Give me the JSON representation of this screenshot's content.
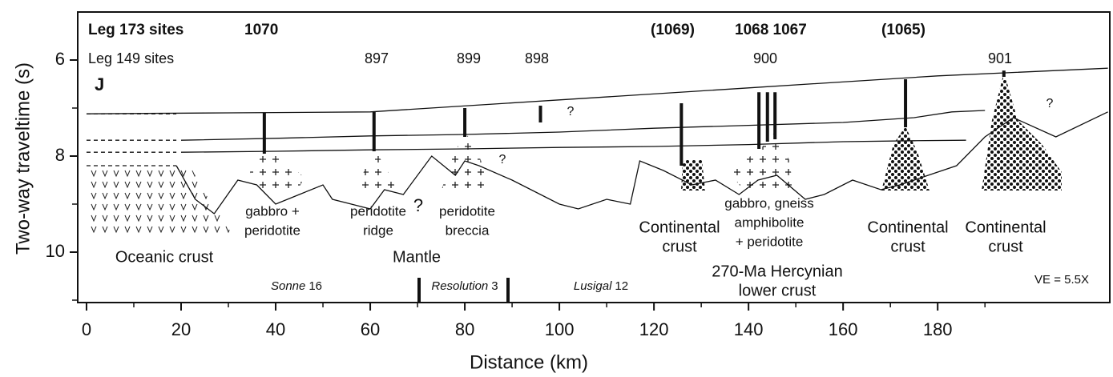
{
  "chart_data": {
    "type": "section",
    "xlabel": "Distance (km)",
    "ylabel": "Two-way traveltime (s)",
    "xlim": [
      -1.86,
      216.4
    ],
    "ylim": [
      11.05,
      5
    ],
    "xticks": [
      0,
      20,
      40,
      60,
      80,
      100,
      120,
      140,
      160,
      180
    ],
    "xminor": [
      10,
      30,
      50,
      70,
      90,
      110,
      130,
      150,
      170,
      190
    ],
    "yticks": [
      6,
      8,
      10
    ],
    "yminor": [
      7,
      9,
      11
    ],
    "series": [
      {
        "color": "#111",
        "dash": false,
        "x": [
          0,
          30,
          60,
          100,
          140,
          180,
          216
        ],
        "values": [
          7.12,
          7.1,
          7.08,
          6.83,
          6.58,
          6.33,
          6.17
        ]
      },
      {
        "color": "#111",
        "dash": false,
        "x": [
          20,
          40,
          60,
          80,
          100,
          120,
          140,
          160,
          175,
          183,
          190
        ],
        "values": [
          7.67,
          7.63,
          7.58,
          7.55,
          7.5,
          7.42,
          7.36,
          7.3,
          7.2,
          7.08,
          7.05
        ]
      },
      {
        "color": "#111",
        "dash": false,
        "x": [
          20,
          40,
          60,
          80,
          100,
          120,
          140,
          160,
          175,
          186
        ],
        "values": [
          7.92,
          7.9,
          7.87,
          7.85,
          7.82,
          7.8,
          7.76,
          7.7,
          7.68,
          7.67
        ]
      },
      {
        "color": "#111",
        "dash": false,
        "x": [
          19,
          23,
          27,
          32,
          36,
          40,
          45,
          50,
          52,
          60,
          63,
          67,
          73,
          78,
          80,
          83,
          90,
          100,
          104,
          110,
          115,
          117,
          122,
          128,
          133,
          138,
          142,
          146,
          152,
          156,
          162,
          168,
          172,
          184,
          190,
          196,
          205,
          216
        ],
        "values": [
          8.2,
          8.9,
          9.2,
          8.5,
          8.6,
          9.0,
          8.8,
          8.6,
          8.9,
          9.1,
          8.7,
          8.8,
          8.0,
          8.4,
          8.1,
          8.2,
          8.5,
          9.0,
          9.1,
          8.9,
          9.0,
          8.1,
          8.3,
          8.6,
          8.5,
          8.8,
          8.5,
          8.4,
          8.9,
          8.8,
          8.5,
          8.7,
          8.6,
          8.2,
          7.6,
          7.2,
          7.6,
          7.08
        ]
      },
      {
        "color": "#111",
        "dash": true,
        "x": [
          0,
          19
        ],
        "values": [
          7.12,
          7.12
        ]
      },
      {
        "color": "#111",
        "dash": true,
        "x": [
          0,
          19
        ],
        "values": [
          7.67,
          7.67
        ]
      },
      {
        "color": "#111",
        "dash": true,
        "x": [
          0,
          19
        ],
        "values": [
          7.92,
          7.92
        ]
      },
      {
        "color": "#111",
        "dash": true,
        "x": [
          0,
          19
        ],
        "values": [
          8.2,
          8.2
        ]
      }
    ],
    "holes": [
      {
        "x": [
          37.6,
          37.6
        ],
        "values": [
          7.1,
          7.95
        ]
      },
      {
        "x": [
          60.8,
          60.8
        ],
        "values": [
          7.08,
          7.9
        ]
      },
      {
        "x": [
          80,
          80
        ],
        "values": [
          7.0,
          7.6
        ]
      },
      {
        "x": [
          96,
          96
        ],
        "values": [
          6.95,
          7.3
        ]
      },
      {
        "x": [
          125.8,
          125.8
        ],
        "values": [
          6.9,
          8.2
        ]
      },
      {
        "x": [
          142.2,
          142.2
        ],
        "values": [
          6.67,
          7.85
        ]
      },
      {
        "x": [
          144,
          144
        ],
        "values": [
          6.67,
          7.7
        ]
      },
      {
        "x": [
          145.6,
          145.6
        ],
        "values": [
          6.67,
          7.65
        ]
      },
      {
        "x": [
          173.2,
          173.2
        ],
        "values": [
          6.4,
          7.4
        ]
      },
      {
        "x": [
          194,
          194
        ],
        "values": [
          6.22,
          6.35
        ]
      }
    ],
    "leg173": {
      "label": "Leg 173 sites",
      "sites": [
        "1070",
        "(1069)",
        "1068 1067",
        "(1065)"
      ]
    },
    "leg149": {
      "label": "Leg 149 sites",
      "sites": [
        "897",
        "899",
        "898",
        "900",
        "901"
      ]
    },
    "panel": "J",
    "questions": [
      "?",
      "?",
      "?",
      "?"
    ],
    "annotations": [
      [
        "gabbro +",
        "peridotite"
      ],
      [
        "peridotite",
        "ridge"
      ],
      [
        "peridotite",
        "breccia"
      ],
      [
        "gabbro, gneiss",
        "amphibolite",
        "+ peridotite"
      ]
    ],
    "big_labels": [
      [
        "Oceanic crust"
      ],
      [
        "Mantle"
      ],
      [
        "Continental",
        "crust"
      ],
      [
        "270-Ma Hercynian",
        "lower crust"
      ],
      [
        "Continental",
        "crust"
      ],
      [
        "Continental",
        "crust"
      ]
    ],
    "cruises": [
      {
        "ship": "Sonne",
        "number": "16"
      },
      {
        "ship": "Resolution",
        "number": "3"
      },
      {
        "ship": "Lusigal",
        "number": "12"
      }
    ],
    "ve": "VE = 5.5X"
  }
}
